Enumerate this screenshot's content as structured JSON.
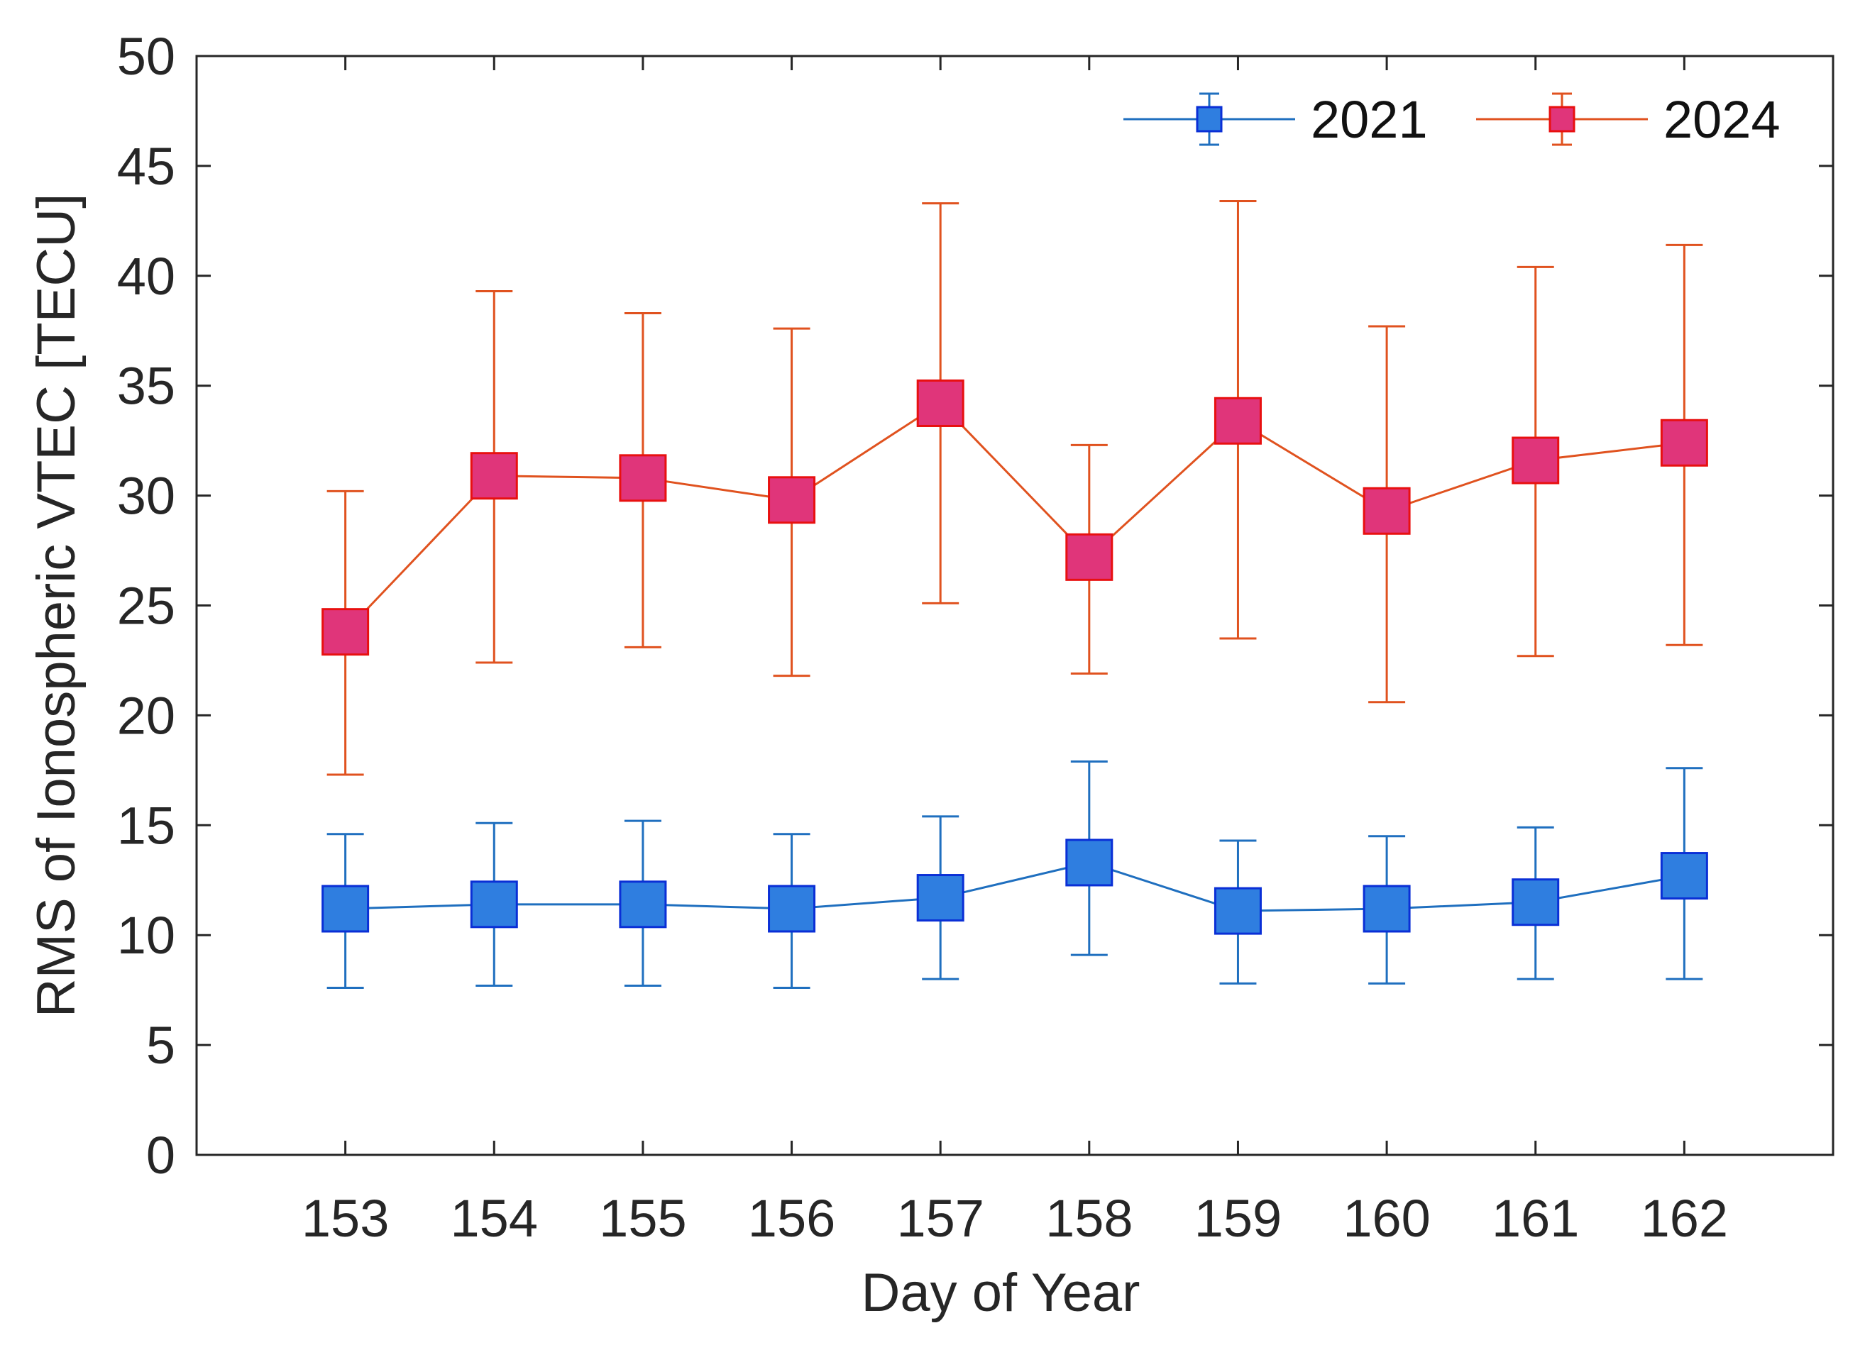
{
  "chart_data": {
    "type": "line",
    "title": "",
    "xlabel": "Day of Year",
    "ylabel": "RMS of Ionospheric VTEC [TECU]",
    "x": [
      153,
      154,
      155,
      156,
      157,
      158,
      159,
      160,
      161,
      162
    ],
    "x_tick_labels": [
      "153",
      "154",
      "155",
      "156",
      "157",
      "158",
      "159",
      "160",
      "161",
      "162"
    ],
    "xlim": [
      152,
      163
    ],
    "ylim": [
      0,
      50
    ],
    "y_ticks": [
      0,
      5,
      10,
      15,
      20,
      25,
      30,
      35,
      40,
      45,
      50
    ],
    "y_tick_labels": [
      "0",
      "5",
      "10",
      "15",
      "20",
      "25",
      "30",
      "35",
      "40",
      "45",
      "50"
    ],
    "grid": false,
    "legend_position": "top-right",
    "series": [
      {
        "name": "2021",
        "color": "#1f6fbf",
        "marker_fill": "#2f7ee0",
        "marker_edge": "#0a2fd6",
        "values": [
          11.2,
          11.4,
          11.4,
          11.2,
          11.7,
          13.3,
          11.1,
          11.2,
          11.5,
          12.7
        ],
        "error_low": [
          7.6,
          7.7,
          7.7,
          7.6,
          8.0,
          9.1,
          7.8,
          7.8,
          8.0,
          8.0
        ],
        "error_high": [
          14.6,
          15.1,
          15.2,
          14.6,
          15.4,
          17.9,
          14.3,
          14.5,
          14.9,
          17.6
        ]
      },
      {
        "name": "2024",
        "color": "#e0521f",
        "marker_fill": "#e0357a",
        "marker_edge": "#e81010",
        "values": [
          23.8,
          30.9,
          30.8,
          29.8,
          34.2,
          27.2,
          33.4,
          29.3,
          31.6,
          32.4
        ],
        "error_low": [
          17.3,
          22.4,
          23.1,
          21.8,
          25.1,
          21.9,
          23.5,
          20.6,
          22.7,
          23.2
        ],
        "error_high": [
          30.2,
          39.3,
          38.3,
          37.6,
          43.3,
          32.3,
          43.4,
          37.7,
          40.4,
          41.4
        ]
      }
    ]
  }
}
